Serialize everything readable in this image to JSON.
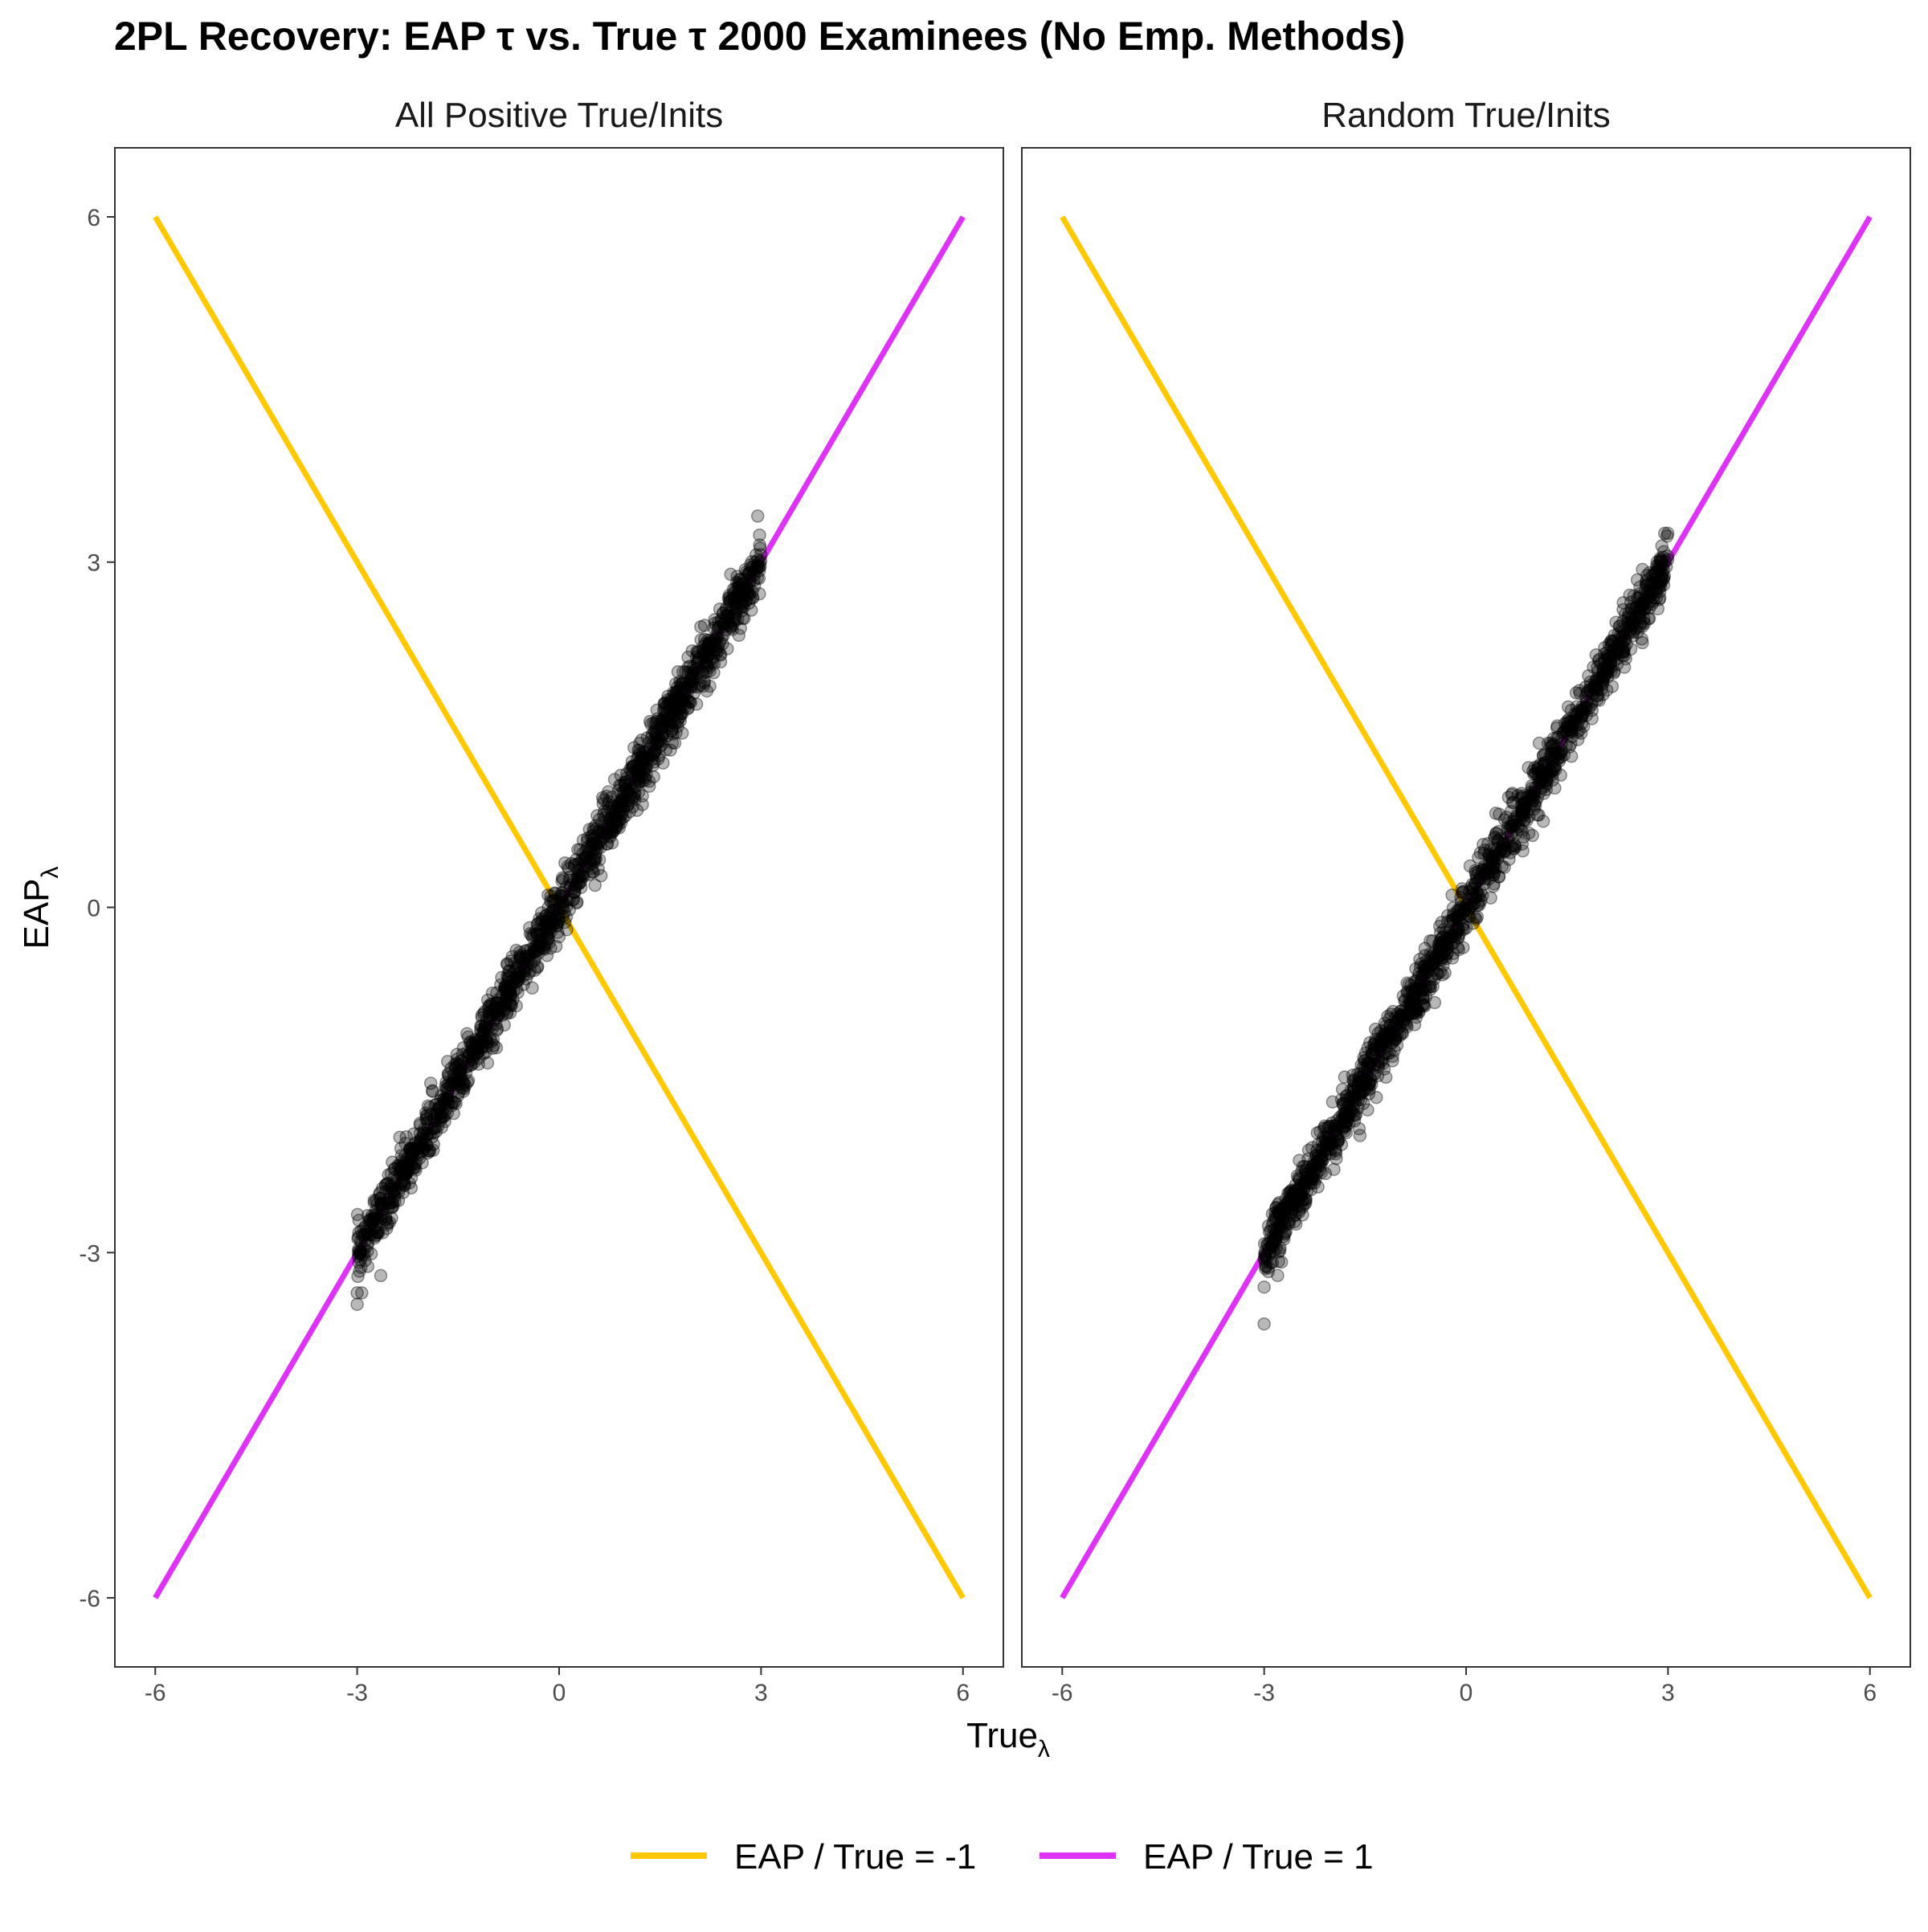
{
  "chart_data": {
    "type": "scatter",
    "title": "2PL Recovery: EAP τ vs. True τ 2000 Examinees (No Emp. Methods)",
    "xlabel": "True",
    "xlabel_subscript": "λ",
    "ylabel": "EAP",
    "ylabel_subscript": "λ",
    "xlim": [
      -6.6,
      6.6
    ],
    "ylim": [
      -6.6,
      6.6
    ],
    "xticks": [
      -6,
      -3,
      0,
      3,
      6
    ],
    "yticks": [
      -6,
      -3,
      0,
      3,
      6
    ],
    "xtick_labels": [
      "-6",
      "-3",
      "0",
      "3",
      "6"
    ],
    "ytick_labels": [
      "-6",
      "-3",
      "0",
      "3",
      "6"
    ],
    "grid": false,
    "legend_position": "bottom",
    "colors": {
      "line_neg": "#FFC800",
      "line_pos": "#DD33F5",
      "points": "#000000",
      "panel_border": "#333333"
    },
    "lines": [
      {
        "name": "EAP / True = -1",
        "slope": -1,
        "x": [
          -6,
          6
        ],
        "y": [
          6,
          -6
        ],
        "color": "#FFC800"
      },
      {
        "name": "EAP / True = 1",
        "slope": 1,
        "x": [
          -6,
          6
        ],
        "y": [
          -6,
          6
        ],
        "color": "#DD33F5"
      }
    ],
    "panels": [
      {
        "label": "All Positive True/Inits",
        "points_summary": {
          "n": 2000,
          "x_range": [
            -3,
            3
          ],
          "slope": 1,
          "spread": 0.12
        },
        "outliers": [
          [
            -3.0,
            -3.45
          ],
          [
            -3.0,
            -3.35
          ],
          [
            -2.65,
            -3.2
          ],
          [
            2.95,
            3.4
          ],
          [
            -0.4,
            -0.7
          ],
          [
            1.2,
            1.1
          ],
          [
            -2.3,
            -2.4
          ],
          [
            2.1,
            2.0
          ]
        ]
      },
      {
        "label": "Random True/Inits",
        "points_summary": {
          "n": 2000,
          "x_range": [
            -3,
            3
          ],
          "slope": 1,
          "spread": 0.12
        },
        "outliers": [
          [
            -3.0,
            -3.62
          ],
          [
            -3.0,
            -3.3
          ],
          [
            -1.05,
            -1.15
          ],
          [
            2.95,
            3.25
          ],
          [
            1.2,
            1.1
          ],
          [
            -2.3,
            -2.4
          ],
          [
            2.1,
            2.0
          ]
        ]
      }
    ]
  }
}
